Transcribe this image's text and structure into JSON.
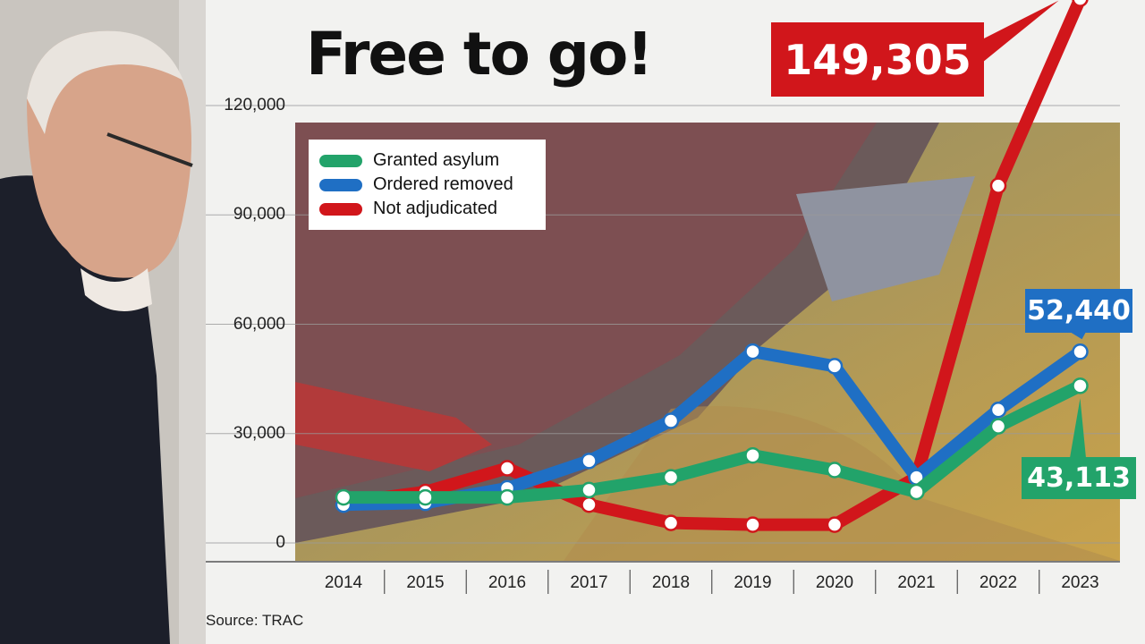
{
  "title": "Free to go!",
  "source": "Source: TRAC",
  "colors": {
    "granted": "#22a36a",
    "removed": "#1f6fc4",
    "not_adjudicated": "#d1161b"
  },
  "chart_data": {
    "type": "line",
    "title": "Free to go!",
    "x": [
      "2014",
      "2015",
      "2016",
      "2017",
      "2018",
      "2019",
      "2020",
      "2021",
      "2022",
      "2023"
    ],
    "ylim": [
      0,
      120000
    ],
    "yticks": [
      "120,000",
      "90,000",
      "60,000",
      "30,000",
      "0"
    ],
    "ytick_values": [
      120000,
      90000,
      60000,
      30000,
      0
    ],
    "legend_position": "top-left",
    "series": [
      {
        "key": "not_adjudicated",
        "name": "Not adjudicated",
        "color": "#d1161b",
        "values": [
          11000,
          14000,
          20500,
          10500,
          5500,
          5000,
          5000,
          18000,
          98000,
          149305
        ]
      },
      {
        "key": "removed",
        "name": "Ordered removed",
        "color": "#1f6fc4",
        "values": [
          10500,
          11000,
          15000,
          22500,
          33500,
          52500,
          48500,
          18000,
          36500,
          52440
        ]
      },
      {
        "key": "granted",
        "name": "Granted asylum",
        "color": "#22a36a",
        "values": [
          12500,
          12500,
          12500,
          14500,
          18000,
          24000,
          20000,
          14000,
          32000,
          43113
        ]
      }
    ],
    "annotations": [
      {
        "series": "not_adjudicated",
        "text": "149,305"
      },
      {
        "series": "removed",
        "text": "52,440"
      },
      {
        "series": "granted",
        "text": "43,113"
      }
    ]
  }
}
